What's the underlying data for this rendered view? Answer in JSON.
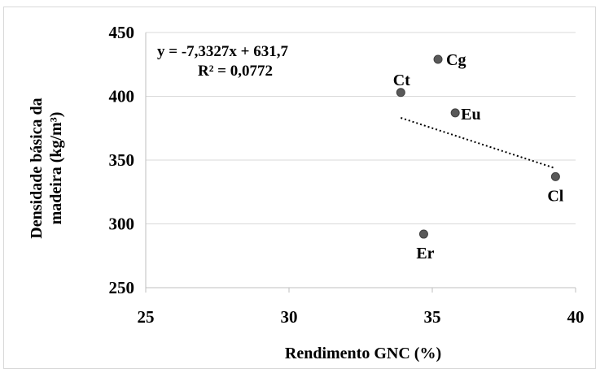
{
  "chart_data": {
    "type": "scatter",
    "title": "",
    "xlabel": "Rendimento  GNC (%)",
    "ylabel_lines": [
      "Densidade básica da",
      "madeira (kg/m³)"
    ],
    "xlim": [
      25,
      40
    ],
    "ylim": [
      250,
      450
    ],
    "x_ticks": [
      "25",
      "30",
      "35",
      "40"
    ],
    "y_ticks": [
      "250",
      "300",
      "350",
      "400",
      "450"
    ],
    "grid": "horizontal",
    "legend": "none",
    "marker_color": "#595959",
    "trendline_color": "#000000",
    "series": [
      {
        "points": [
          {
            "label": "Cg",
            "x": 35.2,
            "y": 429
          },
          {
            "label": "Ct",
            "x": 33.9,
            "y": 403
          },
          {
            "label": "Eu",
            "x": 35.8,
            "y": 387
          },
          {
            "label": "Cl",
            "x": 39.3,
            "y": 337
          },
          {
            "label": "Er",
            "x": 34.7,
            "y": 292
          }
        ]
      }
    ],
    "trendline": {
      "type": "linear",
      "slope": -7.3327,
      "intercept": 631.7,
      "x_range": [
        33.9,
        39.3
      ],
      "equation_text": "y = -7,3327x + 631,7",
      "r2_text": "R² = 0,0772"
    }
  }
}
